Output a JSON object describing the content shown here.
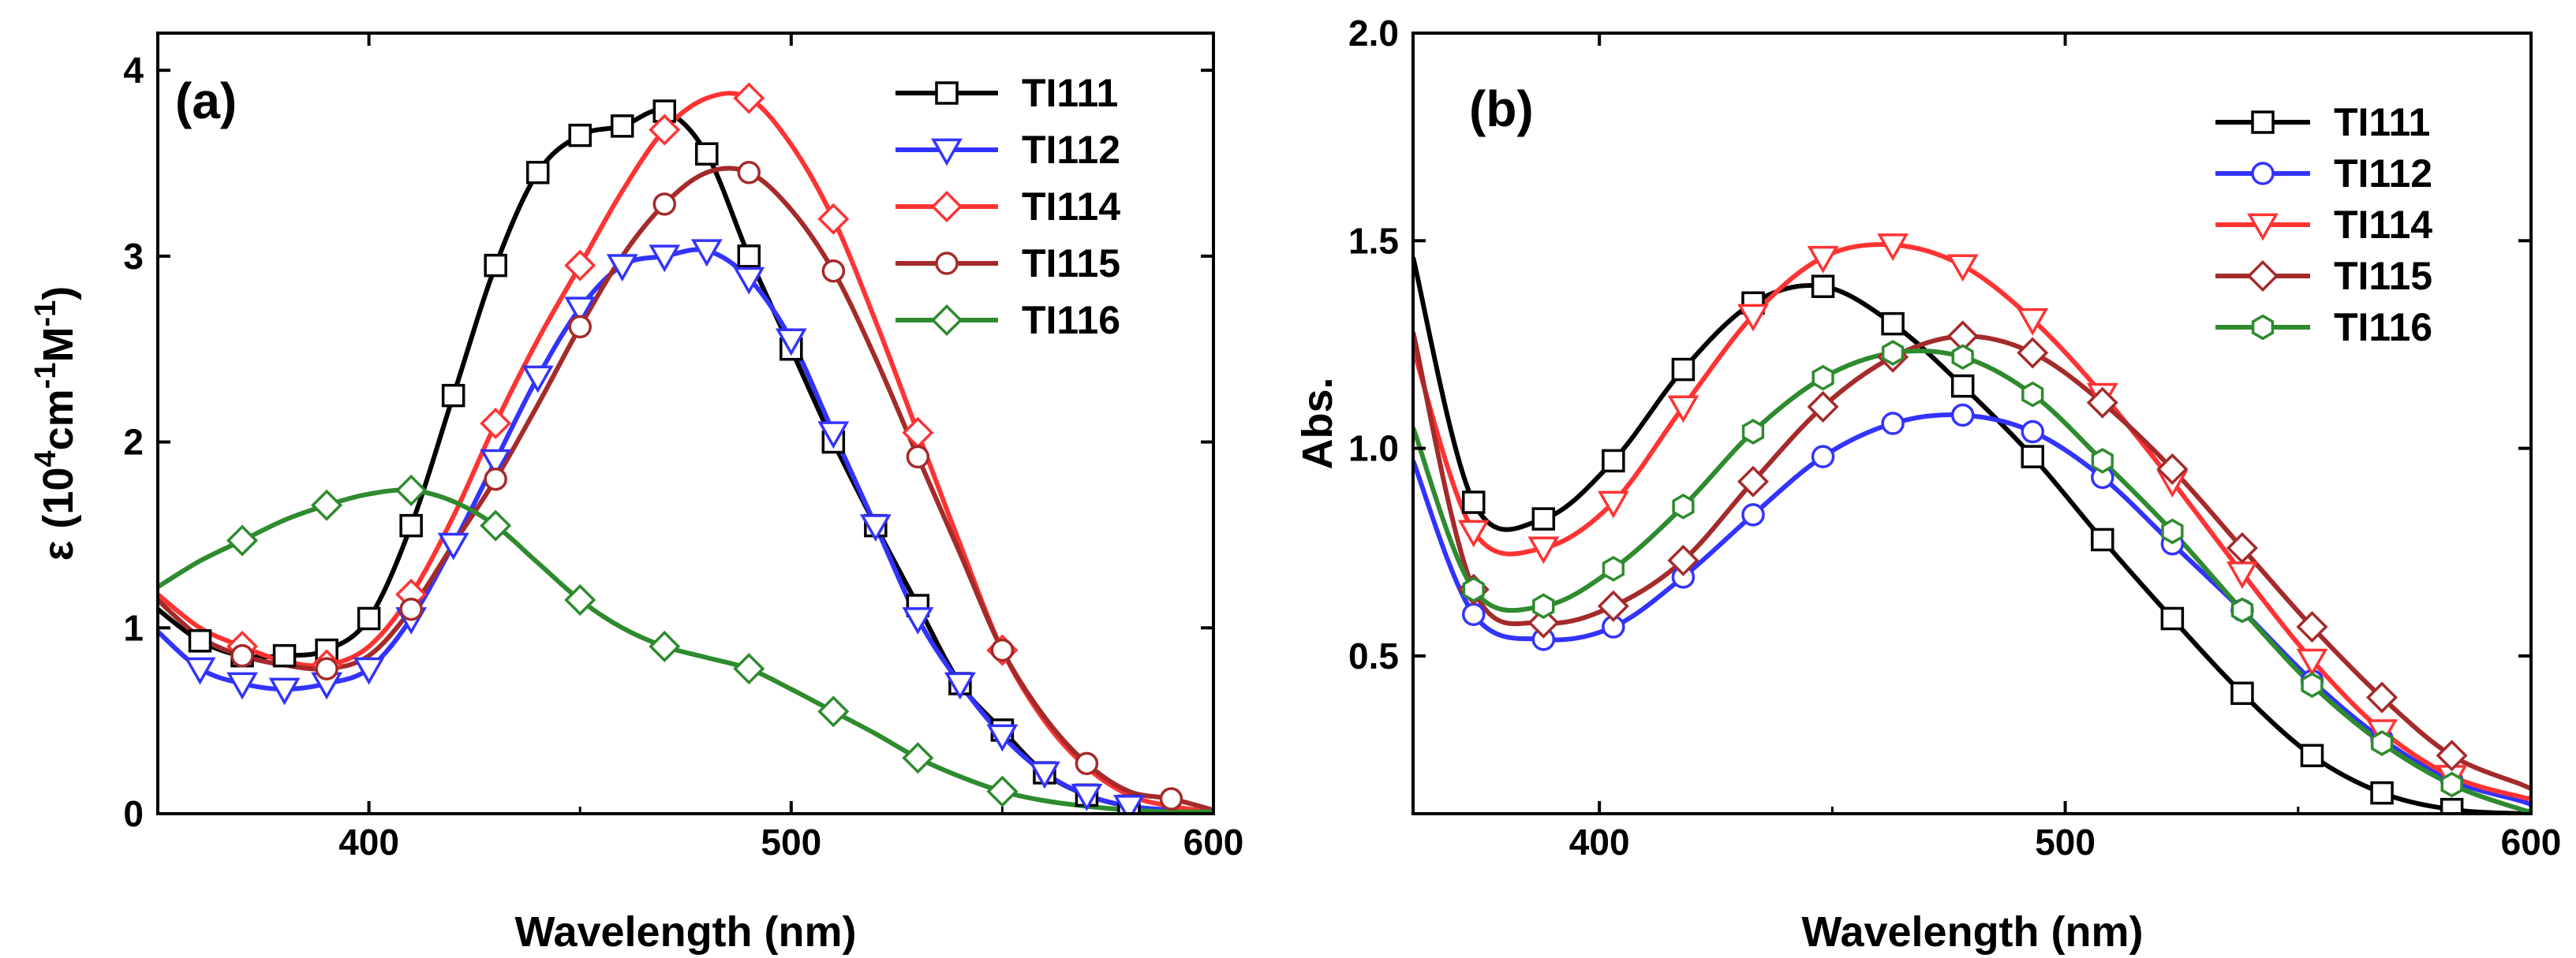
{
  "chart_data": [
    {
      "type": "line",
      "panel_label": "(a)",
      "xlabel": "Wavelength (nm)",
      "ylabel": {
        "prefix": "ε (10",
        "sup1": "4",
        "mid": "cm",
        "sup2": "-1",
        "mid2": "M",
        "sup3": "-1",
        "suffix": ")"
      },
      "xlim": [
        350,
        600
      ],
      "ylim": [
        0,
        4.2
      ],
      "xticks": [
        400,
        500,
        600
      ],
      "xtick_labels": [
        "400",
        "500",
        "600"
      ],
      "yticks": [
        0,
        1,
        2,
        3,
        4
      ],
      "ytick_labels": [
        "0",
        "1",
        "2",
        "3",
        "4"
      ],
      "legend_position": "top-right",
      "series": [
        {
          "name": "TI111",
          "color": "#000000",
          "marker": "square",
          "x": [
            350,
            360,
            370,
            380,
            390,
            400,
            410,
            420,
            430,
            440,
            450,
            460,
            470,
            480,
            490,
            500,
            510,
            520,
            530,
            540,
            550,
            560,
            570,
            580,
            590,
            600
          ],
          "y": [
            1.1,
            0.93,
            0.85,
            0.85,
            0.88,
            1.05,
            1.55,
            2.25,
            2.95,
            3.45,
            3.65,
            3.7,
            3.78,
            3.55,
            3.0,
            2.5,
            2.0,
            1.55,
            1.12,
            0.7,
            0.45,
            0.22,
            0.1,
            0.04,
            0.02,
            0.01
          ],
          "marker_x": [
            360,
            370,
            380,
            390,
            400,
            410,
            420,
            430,
            440,
            450,
            460,
            470,
            480,
            490,
            500,
            510,
            520,
            530,
            540,
            550,
            560,
            570,
            580
          ]
        },
        {
          "name": "TI112",
          "color": "#3333ff",
          "marker": "triangle-down",
          "x": [
            350,
            360,
            370,
            380,
            390,
            400,
            410,
            420,
            430,
            440,
            450,
            460,
            470,
            480,
            490,
            500,
            510,
            520,
            530,
            540,
            550,
            560,
            570,
            580,
            590,
            600
          ],
          "y": [
            0.98,
            0.78,
            0.7,
            0.67,
            0.7,
            0.78,
            1.05,
            1.45,
            1.9,
            2.35,
            2.72,
            2.95,
            3.0,
            3.03,
            2.88,
            2.55,
            2.05,
            1.55,
            1.05,
            0.7,
            0.42,
            0.22,
            0.1,
            0.04,
            0.02,
            0.01
          ],
          "marker_x": [
            360,
            370,
            380,
            390,
            400,
            410,
            420,
            430,
            440,
            450,
            460,
            470,
            480,
            490,
            500,
            510,
            520,
            530,
            540,
            550,
            560,
            570,
            580
          ]
        },
        {
          "name": "TI114",
          "color": "#ff3333",
          "marker": "diamond",
          "x": [
            350,
            360,
            370,
            380,
            390,
            400,
            410,
            420,
            430,
            440,
            450,
            460,
            470,
            480,
            490,
            500,
            510,
            520,
            530,
            540,
            550,
            560,
            570,
            580,
            590,
            600
          ],
          "y": [
            1.18,
            1.0,
            0.9,
            0.82,
            0.8,
            0.9,
            1.18,
            1.6,
            2.1,
            2.55,
            2.95,
            3.35,
            3.68,
            3.85,
            3.85,
            3.6,
            3.2,
            2.65,
            2.05,
            1.45,
            0.88,
            0.5,
            0.25,
            0.1,
            0.04,
            0.01
          ],
          "marker_x": [
            370,
            390,
            410,
            430,
            450,
            470,
            490,
            510,
            530,
            550
          ]
        },
        {
          "name": "TI115",
          "color": "#a52a2a",
          "marker": "circle",
          "x": [
            350,
            360,
            370,
            380,
            390,
            400,
            410,
            420,
            430,
            440,
            450,
            460,
            470,
            480,
            490,
            500,
            510,
            520,
            530,
            540,
            550,
            560,
            570,
            580,
            590,
            600
          ],
          "y": [
            1.15,
            0.95,
            0.85,
            0.8,
            0.78,
            0.85,
            1.1,
            1.45,
            1.8,
            2.2,
            2.62,
            3.0,
            3.28,
            3.45,
            3.45,
            3.25,
            2.92,
            2.45,
            1.92,
            1.4,
            0.88,
            0.52,
            0.27,
            0.12,
            0.08,
            0.02
          ],
          "marker_x": [
            370,
            390,
            410,
            430,
            450,
            470,
            490,
            510,
            530,
            550,
            570,
            590
          ]
        },
        {
          "name": "TI116",
          "color": "#2e8b2e",
          "marker": "diamond",
          "x": [
            350,
            360,
            370,
            380,
            390,
            400,
            410,
            420,
            430,
            440,
            450,
            460,
            470,
            480,
            490,
            500,
            510,
            520,
            530,
            540,
            550,
            560,
            570,
            580,
            590,
            600
          ],
          "y": [
            1.22,
            1.36,
            1.47,
            1.58,
            1.66,
            1.72,
            1.74,
            1.68,
            1.55,
            1.35,
            1.15,
            1.0,
            0.9,
            0.84,
            0.78,
            0.67,
            0.55,
            0.43,
            0.3,
            0.2,
            0.12,
            0.07,
            0.04,
            0.02,
            0.01,
            0.01
          ],
          "marker_x": [
            370,
            390,
            410,
            430,
            450,
            470,
            490,
            510,
            530,
            550
          ]
        }
      ]
    },
    {
      "type": "line",
      "panel_label": "(b)",
      "xlabel": "Wavelength (nm)",
      "ylabel": "Abs.",
      "xlim": [
        360,
        600
      ],
      "ylim": [
        0.12,
        2.0
      ],
      "xticks": [
        400,
        500,
        600
      ],
      "xtick_labels": [
        "400",
        "500",
        "600"
      ],
      "yticks": [
        0.5,
        1.0,
        1.5,
        2.0
      ],
      "ytick_labels": [
        "0.5",
        "1.0",
        "1.5",
        "2.0"
      ],
      "legend_position": "top-right",
      "series": [
        {
          "name": "TI111",
          "color": "#000000",
          "marker": "square",
          "x": [
            360,
            373,
            388,
            403,
            418,
            433,
            448,
            463,
            478,
            493,
            508,
            523,
            538,
            553,
            568,
            583,
            598,
            600
          ],
          "y": [
            1.46,
            0.87,
            0.83,
            0.97,
            1.19,
            1.35,
            1.39,
            1.3,
            1.15,
            0.98,
            0.78,
            0.59,
            0.41,
            0.26,
            0.17,
            0.13,
            0.12,
            0.12
          ],
          "marker_x": [
            373,
            388,
            403,
            418,
            433,
            448,
            463,
            478,
            493,
            508,
            523,
            538,
            553,
            568,
            583
          ]
        },
        {
          "name": "TI112",
          "color": "#3333ff",
          "marker": "circle",
          "x": [
            360,
            373,
            388,
            403,
            418,
            433,
            448,
            463,
            478,
            493,
            508,
            523,
            538,
            553,
            568,
            583,
            598,
            600
          ],
          "y": [
            0.97,
            0.6,
            0.54,
            0.57,
            0.69,
            0.84,
            0.98,
            1.06,
            1.08,
            1.04,
            0.93,
            0.77,
            0.61,
            0.44,
            0.3,
            0.2,
            0.15,
            0.14
          ],
          "marker_x": [
            373,
            388,
            403,
            418,
            433,
            448,
            463,
            478,
            493,
            508,
            523,
            538,
            553,
            568,
            583
          ]
        },
        {
          "name": "TI114",
          "color": "#ff3333",
          "marker": "triangle-down",
          "x": [
            360,
            373,
            388,
            403,
            418,
            433,
            448,
            463,
            478,
            493,
            508,
            523,
            538,
            553,
            568,
            583,
            598,
            600
          ],
          "y": [
            1.24,
            0.8,
            0.76,
            0.87,
            1.1,
            1.32,
            1.46,
            1.49,
            1.44,
            1.31,
            1.13,
            0.92,
            0.7,
            0.49,
            0.32,
            0.21,
            0.16,
            0.16
          ],
          "marker_x": [
            373,
            388,
            403,
            418,
            433,
            448,
            463,
            478,
            493,
            508,
            523,
            538,
            553,
            568,
            583
          ]
        },
        {
          "name": "TI115",
          "color": "#a52a2a",
          "marker": "diamond",
          "x": [
            360,
            373,
            388,
            403,
            418,
            433,
            448,
            463,
            478,
            493,
            508,
            523,
            538,
            553,
            568,
            583,
            598,
            600
          ],
          "y": [
            1.28,
            0.66,
            0.58,
            0.62,
            0.73,
            0.92,
            1.1,
            1.22,
            1.27,
            1.23,
            1.11,
            0.95,
            0.76,
            0.57,
            0.4,
            0.26,
            0.19,
            0.18
          ],
          "marker_x": [
            373,
            388,
            403,
            418,
            433,
            448,
            463,
            478,
            493,
            508,
            523,
            538,
            553,
            568,
            583
          ]
        },
        {
          "name": "TI116",
          "color": "#2e8b2e",
          "marker": "hexagon",
          "x": [
            360,
            373,
            388,
            403,
            418,
            433,
            448,
            463,
            478,
            493,
            508,
            523,
            538,
            553,
            568,
            583,
            598,
            600
          ],
          "y": [
            1.05,
            0.66,
            0.62,
            0.71,
            0.86,
            1.04,
            1.17,
            1.23,
            1.22,
            1.13,
            0.97,
            0.8,
            0.61,
            0.43,
            0.29,
            0.19,
            0.13,
            0.13
          ],
          "marker_x": [
            373,
            388,
            403,
            418,
            433,
            448,
            463,
            478,
            493,
            508,
            523,
            538,
            553,
            568,
            583
          ]
        }
      ]
    }
  ]
}
